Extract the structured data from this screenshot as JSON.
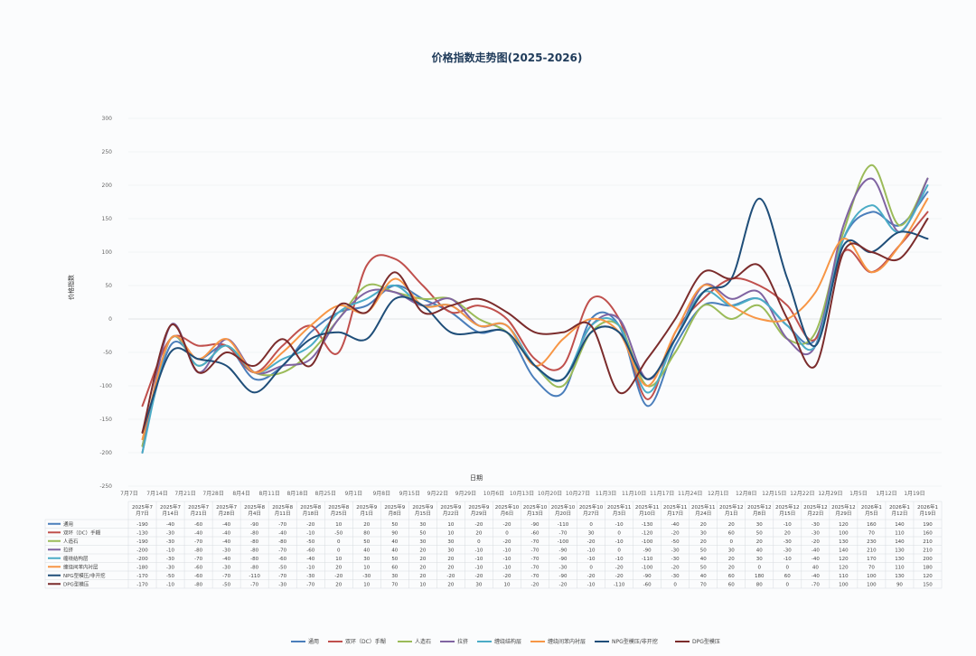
{
  "chart_data": {
    "type": "line",
    "title": "价格指数走势图(2025-2026)",
    "xlabel": "日期",
    "ylabel": "价格指数",
    "ylim": [
      -250,
      300
    ],
    "yticks": [
      -250,
      -200,
      -150,
      -100,
      -50,
      0,
      50,
      100,
      150,
      200,
      250,
      300
    ],
    "grid": true,
    "legend_position": "bottom",
    "x": [
      "7月7日",
      "7月14日",
      "7月21日",
      "7月28日",
      "8月4日",
      "8月11日",
      "8月18日",
      "8月25日",
      "9月1日",
      "9月8日",
      "9月15日",
      "9月22日",
      "9月29日",
      "10月6日",
      "10月13日",
      "10月20日",
      "10月27日",
      "11月3日",
      "11月10日",
      "11月17日",
      "11月24日",
      "12月1日",
      "12月8日",
      "12月15日",
      "12月22日",
      "12月29日",
      "1月5日",
      "1月12日",
      "1月19日"
    ],
    "table_headers": [
      "2025年7\n月7日",
      "2025年7\n月14日",
      "2025年7\n月21日",
      "2025年7\n月28日",
      "2025年8\n月4日",
      "2025年8\n月11日",
      "2025年8\n月18日",
      "2025年8\n月25日",
      "2025年9\n月1日",
      "2025年9\n月8日",
      "2025年9\n月15日",
      "2025年9\n月22日",
      "2025年9\n月29日",
      "2025年10\n月6日",
      "2025年10\n月13日",
      "2025年10\n月20日",
      "2025年10\n月27日",
      "2025年11\n月3日",
      "2025年11\n月10日",
      "2025年11\n月17日",
      "2025年11\n月24日",
      "2025年12\n月1日",
      "2025年12\n月8日",
      "2025年12\n月15日",
      "2025年12\n月22日",
      "2025年12\n月29日",
      "2026年1\n月5日",
      "2026年1\n月12日",
      "2026年1\n月19日"
    ],
    "series": [
      {
        "name": "通用",
        "color": "#4a7ebb",
        "values": [
          -190,
          -40,
          -60,
          -40,
          -90,
          -70,
          -20,
          10,
          20,
          50,
          30,
          10,
          -20,
          -20,
          -90,
          -110,
          0,
          -10,
          -130,
          -40,
          20,
          20,
          30,
          -10,
          -30,
          120,
          160,
          140,
          190
        ]
      },
      {
        "name": "双环（DC）手糊",
        "color": "#c0504d",
        "values": [
          -130,
          -30,
          -40,
          -40,
          -80,
          -40,
          -10,
          -50,
          80,
          90,
          50,
          10,
          20,
          0,
          -60,
          -70,
          30,
          0,
          -120,
          -20,
          30,
          60,
          50,
          20,
          -30,
          100,
          70,
          110,
          160
        ]
      },
      {
        "name": "人造石",
        "color": "#9bbb59",
        "values": [
          -190,
          -30,
          -70,
          -40,
          -80,
          -80,
          -50,
          0,
          50,
          40,
          30,
          30,
          0,
          -20,
          -70,
          -100,
          -20,
          -10,
          -100,
          -50,
          20,
          0,
          20,
          -30,
          -20,
          130,
          230,
          140,
          210
        ]
      },
      {
        "name": "拉挤",
        "color": "#8064a2",
        "values": [
          -200,
          -10,
          -80,
          -30,
          -80,
          -70,
          -60,
          0,
          40,
          40,
          20,
          30,
          -10,
          -10,
          -70,
          -90,
          -10,
          0,
          -90,
          -30,
          50,
          30,
          40,
          -30,
          -40,
          140,
          210,
          130,
          210
        ]
      },
      {
        "name": "缠绕结构层",
        "color": "#4bacc6",
        "values": [
          -200,
          -30,
          -70,
          -40,
          -80,
          -60,
          -40,
          10,
          30,
          50,
          20,
          20,
          -10,
          -10,
          -70,
          -90,
          -10,
          -10,
          -110,
          -30,
          40,
          20,
          30,
          -10,
          -40,
          120,
          170,
          130,
          200
        ]
      },
      {
        "name": "缠绕间苯内衬层",
        "color": "#f79646",
        "values": [
          -180,
          -30,
          -60,
          -30,
          -80,
          -50,
          -10,
          20,
          10,
          60,
          20,
          20,
          -10,
          -10,
          -70,
          -30,
          0,
          -20,
          -100,
          -20,
          50,
          20,
          0,
          0,
          40,
          120,
          70,
          110,
          180
        ]
      },
      {
        "name": "NPG型模压/非开挖",
        "color": "#1f4e79",
        "values": [
          -170,
          -50,
          -60,
          -70,
          -110,
          -70,
          -30,
          -20,
          -30,
          30,
          20,
          -20,
          -20,
          -20,
          -70,
          -90,
          -20,
          -20,
          -90,
          -30,
          40,
          60,
          180,
          60,
          -40,
          110,
          100,
          130,
          120
        ]
      },
      {
        "name": "DPG型模压",
        "color": "#7b2c2c",
        "values": [
          -170,
          -10,
          -80,
          -50,
          -70,
          -30,
          -70,
          20,
          10,
          70,
          10,
          20,
          30,
          10,
          -20,
          -20,
          -10,
          -110,
          -60,
          0,
          70,
          60,
          80,
          0,
          -70,
          100,
          100,
          90,
          150
        ]
      }
    ]
  }
}
